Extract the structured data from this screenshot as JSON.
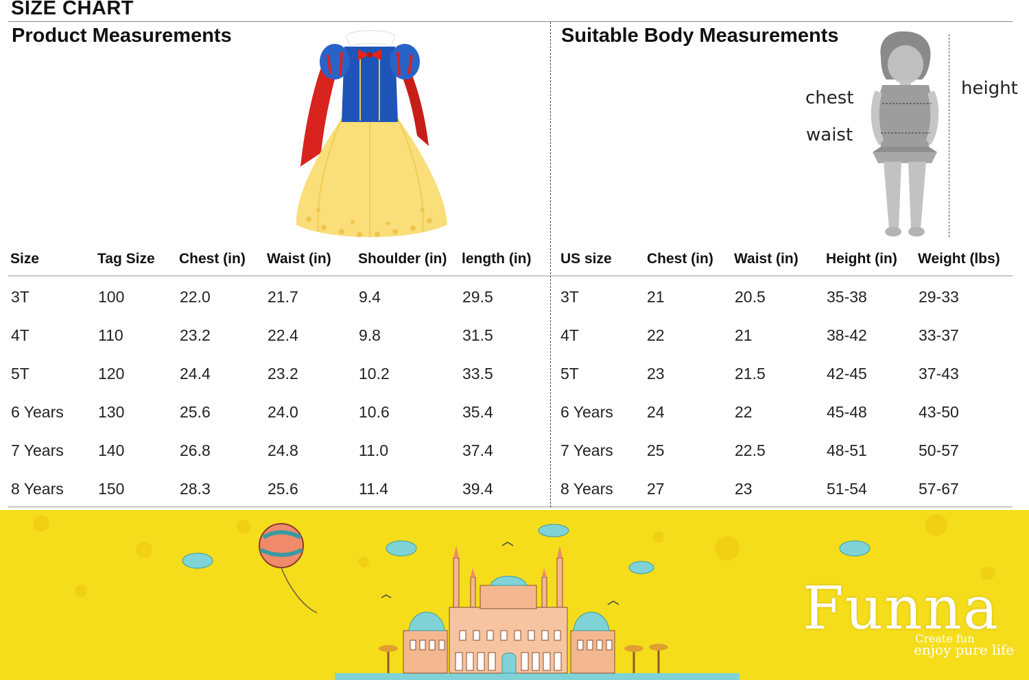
{
  "title": "SIZE CHART",
  "product": {
    "heading": "Product Measurements",
    "columns": [
      "Size",
      "Tag Size",
      "Chest (in)",
      "Waist (in)",
      "Shoulder (in)",
      "length (in)"
    ],
    "rows": [
      [
        "3T",
        "100",
        "22.0",
        "21.7",
        "9.4",
        "29.5"
      ],
      [
        "4T",
        "110",
        "23.2",
        "22.4",
        "9.8",
        "31.5"
      ],
      [
        "5T",
        "120",
        "24.4",
        "23.2",
        "10.2",
        "33.5"
      ],
      [
        "6 Years",
        "130",
        "25.6",
        "24.0",
        "10.6",
        "35.4"
      ],
      [
        "7 Years",
        "140",
        "26.8",
        "24.8",
        "11.0",
        "37.4"
      ],
      [
        "8 Years",
        "150",
        "28.3",
        "25.6",
        "11.4",
        "39.4"
      ]
    ]
  },
  "body": {
    "heading": "Suitable Body Measurements",
    "figure_labels": {
      "chest": "chest",
      "waist": "waist",
      "height": "height"
    },
    "columns": [
      "US size",
      "Chest (in)",
      "Waist (in)",
      "Height (in)",
      "Weight (lbs)"
    ],
    "rows": [
      [
        "3T",
        "21",
        "20.5",
        "35-38",
        "29-33"
      ],
      [
        "4T",
        "22",
        "21",
        "38-42",
        "33-37"
      ],
      [
        "5T",
        "23",
        "21.5",
        "42-45",
        "37-43"
      ],
      [
        "6 Years",
        "24",
        "22",
        "45-48",
        "43-50"
      ],
      [
        "7 Years",
        "25",
        "22.5",
        "48-51",
        "50-57"
      ],
      [
        "8 Years",
        "27",
        "23",
        "51-54",
        "57-67"
      ]
    ]
  },
  "banner": {
    "brand": "Funna",
    "tagline_1": "Create fun",
    "tagline_2": "enjoy pure life",
    "background_color": "#f5dd1c"
  }
}
